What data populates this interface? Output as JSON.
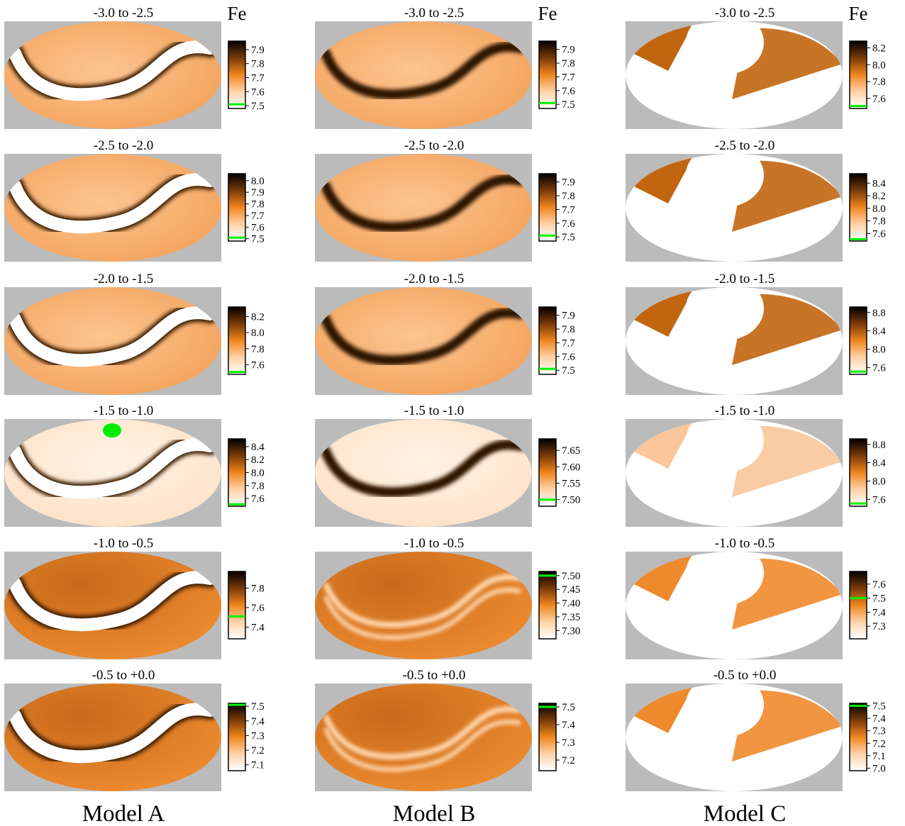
{
  "chart_data": {
    "type": "heatmap",
    "element_label": "Fe",
    "projection": "ellipse (all-sky map)",
    "colormap": [
      "#ffffff",
      "#ffd2a8",
      "#f0861e",
      "#7a3a08",
      "#000000"
    ],
    "highlight_color": "#00ee00",
    "background_color": "#bbbbbb",
    "columns": [
      {
        "label": "Model A",
        "panels": [
          {
            "range_label": "-3.0  to  -2.5",
            "colorbar_ticks": [
              "7.9",
              "7.8",
              "7.7",
              "7.6",
              "7.5"
            ],
            "colorbar_range": [
              7.48,
              7.96
            ],
            "highlight_value": 7.51
          },
          {
            "range_label": "-2.5  to  -2.0",
            "colorbar_ticks": [
              "8.0",
              "7.9",
              "7.8",
              "7.7",
              "7.6",
              "7.5"
            ],
            "colorbar_range": [
              7.48,
              8.06
            ],
            "highlight_value": 7.51
          },
          {
            "range_label": "-2.0  to  -1.5",
            "colorbar_ticks": [
              "8.2",
              "8.0",
              "7.8",
              "7.6"
            ],
            "colorbar_range": [
              7.48,
              8.32
            ],
            "highlight_value": 7.51
          },
          {
            "range_label": "-1.5  to  -1.0",
            "colorbar_ticks": [
              "8.4",
              "8.2",
              "8.0",
              "7.8",
              "7.6"
            ],
            "colorbar_range": [
              7.48,
              8.52
            ],
            "highlight_value": 7.51
          },
          {
            "range_label": "-1.0  to  -0.5",
            "colorbar_ticks": [
              "7.8",
              "7.6",
              "7.4"
            ],
            "colorbar_range": [
              7.28,
              7.97
            ],
            "highlight_value": 7.51
          },
          {
            "range_label": "-0.5  to  +0.0",
            "colorbar_ticks": [
              "7.5",
              "7.4",
              "7.3",
              "7.2",
              "7.1"
            ],
            "colorbar_range": [
              7.06,
              7.52
            ],
            "highlight_value": 7.51
          }
        ]
      },
      {
        "label": "Model B",
        "panels": [
          {
            "range_label": "-3.0  to  -2.5",
            "colorbar_ticks": [
              "7.9",
              "7.8",
              "7.7",
              "7.6",
              "7.5"
            ],
            "colorbar_range": [
              7.47,
              7.96
            ],
            "highlight_value": 7.51
          },
          {
            "range_label": "-2.5  to  -2.0",
            "colorbar_ticks": [
              "7.9",
              "7.8",
              "7.7",
              "7.6",
              "7.5"
            ],
            "colorbar_range": [
              7.47,
              7.96
            ],
            "highlight_value": 7.51
          },
          {
            "range_label": "-2.0  to  -1.5",
            "colorbar_ticks": [
              "7.9",
              "7.8",
              "7.7",
              "7.6",
              "7.5"
            ],
            "colorbar_range": [
              7.47,
              7.96
            ],
            "highlight_value": 7.51
          },
          {
            "range_label": "-1.5  to  -1.0",
            "colorbar_ticks": [
              "7.65",
              "7.60",
              "7.55",
              "7.50"
            ],
            "colorbar_range": [
              7.48,
              7.685
            ],
            "highlight_value": 7.5
          },
          {
            "range_label": "-1.0  to  -0.5",
            "colorbar_ticks": [
              "7.50",
              "7.45",
              "7.40",
              "7.35",
              "7.30"
            ],
            "colorbar_range": [
              7.27,
              7.515
            ],
            "highlight_value": 7.5
          },
          {
            "range_label": "-0.5  to  +0.0",
            "colorbar_ticks": [
              "7.5",
              "7.4",
              "7.3",
              "7.2"
            ],
            "colorbar_range": [
              7.14,
              7.52
            ],
            "highlight_value": 7.5
          }
        ]
      },
      {
        "label": "Model C",
        "panels": [
          {
            "range_label": "-3.0  to  -2.5",
            "colorbar_ticks": [
              "8.2",
              "8.0",
              "7.8",
              "7.6"
            ],
            "colorbar_range": [
              7.48,
              8.28
            ],
            "highlight_value": 7.51
          },
          {
            "range_label": "-2.5  to  -2.0",
            "colorbar_ticks": [
              "8.4",
              "8.2",
              "8.0",
              "7.8",
              "7.6"
            ],
            "colorbar_range": [
              7.48,
              8.55
            ],
            "highlight_value": 7.51
          },
          {
            "range_label": "-2.0  to  -1.5",
            "colorbar_ticks": [
              "8.8",
              "8.4",
              "8.0",
              "7.6"
            ],
            "colorbar_range": [
              7.45,
              8.92
            ],
            "highlight_value": 7.51
          },
          {
            "range_label": "-1.5  to  -1.0",
            "colorbar_ticks": [
              "8.8",
              "8.4",
              "8.0",
              "7.6"
            ],
            "colorbar_range": [
              7.45,
              8.92
            ],
            "highlight_value": 7.51
          },
          {
            "range_label": "-1.0  to  -0.5",
            "colorbar_ticks": [
              "7.6",
              "7.5",
              "7.4",
              "7.3"
            ],
            "colorbar_range": [
              7.21,
              7.69
            ],
            "highlight_value": 7.5
          },
          {
            "range_label": "-0.5  to  +0.0",
            "colorbar_ticks": [
              "7.5",
              "7.4",
              "7.3",
              "7.2",
              "7.1",
              "7.0"
            ],
            "colorbar_range": [
              6.98,
              7.52
            ],
            "highlight_value": 7.5
          }
        ]
      }
    ]
  }
}
